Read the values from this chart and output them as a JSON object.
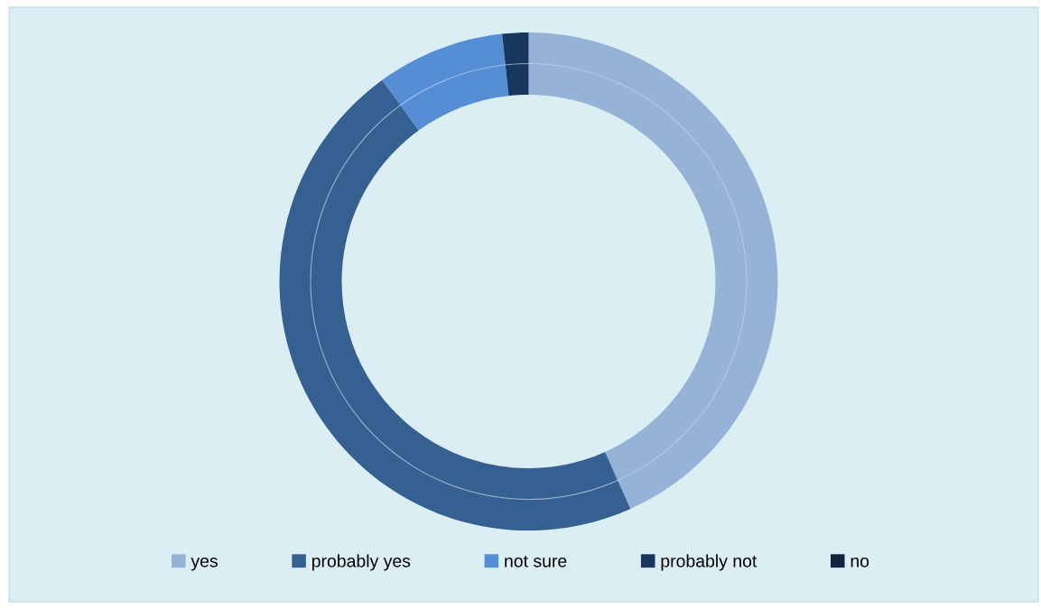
{
  "chart_data": {
    "type": "donut",
    "categories": [
      "yes",
      "probably yes",
      "not sure",
      "probably not",
      "no"
    ],
    "colors": [
      "#95b3d7",
      "#366092",
      "#558ed5",
      "#17375e",
      "#10243e"
    ],
    "series": [
      {
        "values": [
          43.3,
          46.7,
          8.3,
          1.7,
          0
        ]
      },
      {
        "values": [
          43.3,
          46.7,
          8.3,
          1.7,
          0
        ]
      }
    ],
    "legend": "bottom"
  }
}
